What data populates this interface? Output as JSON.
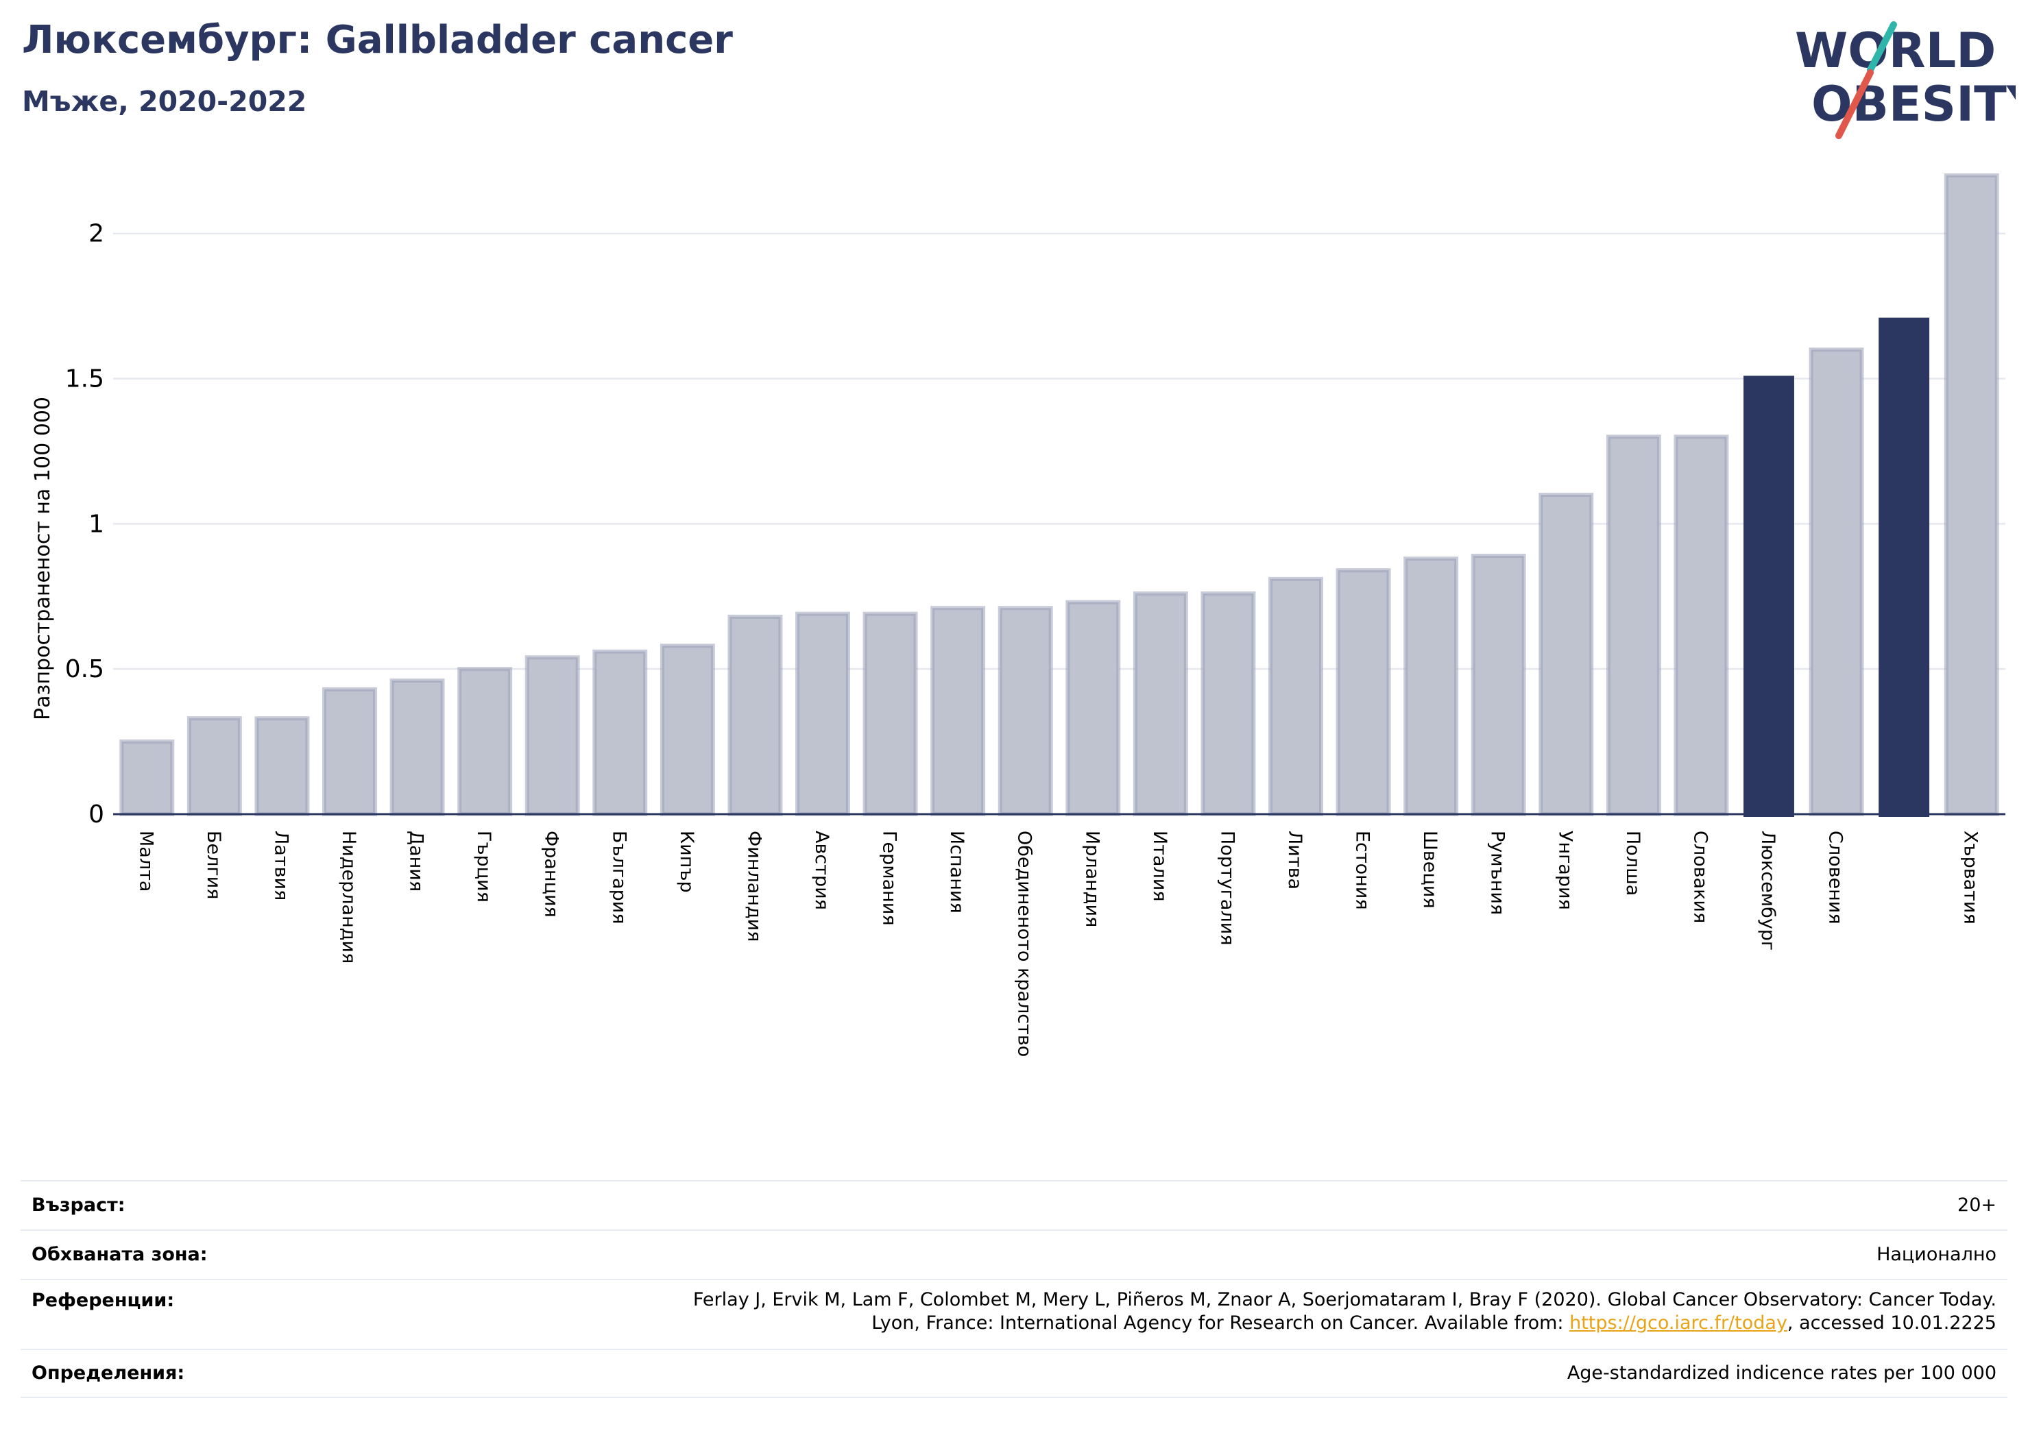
{
  "header": {
    "title": "Люксембург: Gallbladder cancer",
    "subtitle": "Мъже, 2020-2022"
  },
  "logo": {
    "line1": "WORLD",
    "line2": "OBESITY",
    "colors": {
      "text": "#2b3760",
      "slash_teal": "#2fb5a9",
      "slash_red": "#e0584b"
    }
  },
  "chart_data": {
    "type": "bar",
    "ylabel": "Разпространеност  на 100 000",
    "ylim": [
      0,
      2.2
    ],
    "yticks": [
      0,
      0.5,
      1,
      1.5,
      2
    ],
    "ytick_labels": [
      "0",
      "0.5",
      "1",
      "1.5",
      "2"
    ],
    "grid": true,
    "categories": [
      "Малта",
      "Белгия",
      "Латвия",
      "Нидерландия",
      "Дания",
      "Гърция",
      "Франция",
      "България",
      "Кипър",
      "Финландия",
      "Австрия",
      "Германия",
      "Испания",
      "Обединеното кралство",
      "Ирландия",
      "Италия",
      "Португалия",
      "Литва",
      "Естония",
      "Швеция",
      "Румъния",
      "Унгария",
      "Полша",
      "Словакия",
      "Люксембург",
      "Словения",
      "",
      "Хърватия"
    ],
    "values": [
      0.25,
      0.33,
      0.33,
      0.43,
      0.46,
      0.5,
      0.54,
      0.56,
      0.58,
      0.68,
      0.69,
      0.69,
      0.71,
      0.71,
      0.73,
      0.76,
      0.76,
      0.81,
      0.84,
      0.88,
      0.89,
      1.1,
      1.3,
      1.3,
      1.51,
      1.6,
      1.71,
      2.2
    ],
    "highlighted": [
      24,
      26
    ],
    "colors": {
      "bar": "#bfc3d0",
      "bar_edge": "#9aa0b8",
      "highlight": "#2b3760",
      "grid": "#e6e8ef",
      "axis": "#2b3760"
    }
  },
  "info": {
    "age_label": "Възраст:",
    "age_value": "20+",
    "zone_label": "Обхваната зона:",
    "zone_value": "Национално",
    "refs_label": "Референции:",
    "refs_line1": "Ferlay J, Ervik M, Lam F, Colombet M, Mery L, Piñeros M, Znaor A, Soerjomataram I, Bray F (2020). Global Cancer Observatory: Cancer Today.",
    "refs_line2_prefix": "Lyon, France: International Agency for Research on Cancer. Available from: ",
    "refs_link": "https://gco.iarc.fr/today",
    "refs_line2_suffix": ", accessed 10.01.2225",
    "defs_label": "Определения:",
    "defs_value": "Age-standardized indicence rates per 100 000"
  }
}
